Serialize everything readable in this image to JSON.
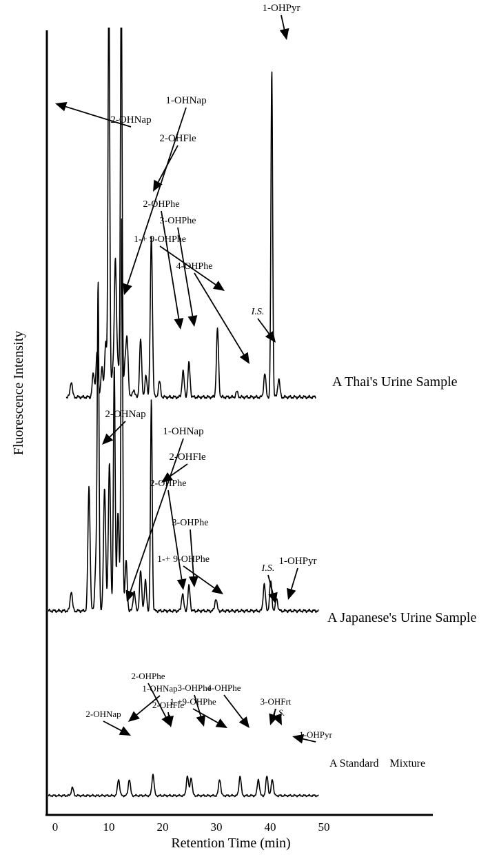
{
  "chart_data": {
    "type": "line",
    "title": "",
    "xlabel": "Retention Time (min)",
    "ylabel": "Fluorescence Intensity",
    "xlim": [
      0,
      50
    ],
    "xticks": [
      "0",
      "10",
      "20",
      "30",
      "40",
      "50"
    ],
    "series": [
      {
        "name": "A Thai's Urine Sample",
        "peaks": [
          {
            "x": 3.0,
            "h": 0.06
          },
          {
            "x": 7.1,
            "h": 0.09
          },
          {
            "x": 7.8,
            "h": 0.17
          },
          {
            "x": 8.7,
            "h": 0.11
          },
          {
            "x": 9.4,
            "h": 0.21
          },
          {
            "x": 10.0,
            "h": 1.6
          },
          {
            "x": 10.7,
            "h": 0.09
          },
          {
            "x": 11.2,
            "h": 0.52
          },
          {
            "x": 11.7,
            "h": 0.12
          },
          {
            "x": 12.3,
            "h": 1.6
          },
          {
            "x": 13.0,
            "h": 0.12
          },
          {
            "x": 13.4,
            "h": 0.21
          },
          {
            "x": 14.6,
            "h": 0.03
          },
          {
            "x": 15.9,
            "h": 0.22
          },
          {
            "x": 16.9,
            "h": 0.08
          },
          {
            "x": 17.9,
            "h": 0.61
          },
          {
            "x": 19.4,
            "h": 0.06
          },
          {
            "x": 23.8,
            "h": 0.1
          },
          {
            "x": 24.9,
            "h": 0.13
          },
          {
            "x": 30.2,
            "h": 0.26
          },
          {
            "x": 33.8,
            "h": 0.02
          },
          {
            "x": 39.0,
            "h": 0.09
          },
          {
            "x": 40.3,
            "h": 1.25
          },
          {
            "x": 41.6,
            "h": 0.07
          }
        ],
        "annotations": [
          {
            "text": "2-OHNap",
            "x": 11.2
          },
          {
            "text": "1-OHNap",
            "x": 13.4
          },
          {
            "text": "2-OHFle",
            "x": 17.9
          },
          {
            "text": "2-OHPhe",
            "x": 23.8
          },
          {
            "text": "3-OHPhe",
            "x": 24.9
          },
          {
            "text": "1-+ 9-OHPhe",
            "x": 30.2
          },
          {
            "text": "4-OHPhe",
            "x": 33.8
          },
          {
            "text": "I.S.",
            "x": 39.0
          },
          {
            "text": "1-OHPyr",
            "x": 40.3
          }
        ]
      },
      {
        "name": "A Japanese's Urine Sample",
        "peaks": [
          {
            "x": 3.0,
            "h": 0.08
          },
          {
            "x": 6.3,
            "h": 0.5
          },
          {
            "x": 7.6,
            "h": 0.2
          },
          {
            "x": 8.0,
            "h": 1.3
          },
          {
            "x": 9.2,
            "h": 0.5
          },
          {
            "x": 10.1,
            "h": 0.6
          },
          {
            "x": 11.0,
            "h": 1.0
          },
          {
            "x": 11.7,
            "h": 0.4
          },
          {
            "x": 12.4,
            "h": 1.6
          },
          {
            "x": 13.2,
            "h": 0.2
          },
          {
            "x": 14.7,
            "h": 0.08
          },
          {
            "x": 15.9,
            "h": 0.16
          },
          {
            "x": 16.8,
            "h": 0.12
          },
          {
            "x": 17.9,
            "h": 0.85
          },
          {
            "x": 23.7,
            "h": 0.07
          },
          {
            "x": 24.9,
            "h": 0.1
          },
          {
            "x": 29.9,
            "h": 0.05
          },
          {
            "x": 38.9,
            "h": 0.11
          },
          {
            "x": 40.1,
            "h": 0.12
          },
          {
            "x": 41.2,
            "h": 0.05
          }
        ],
        "annotations": [
          {
            "text": "2-OHNap",
            "x": 11.0
          },
          {
            "text": "1-OHNap",
            "x": 13.2
          },
          {
            "text": "2-OHFle",
            "x": 17.9
          },
          {
            "text": "2-OHPhe",
            "x": 23.7
          },
          {
            "text": "3-OHPhe",
            "x": 24.9
          },
          {
            "text": "1-+ 9-OHPhe",
            "x": 29.9
          },
          {
            "text": "I.S.",
            "x": 38.9
          },
          {
            "text": "1-OHPyr",
            "x": 40.1
          }
        ]
      },
      {
        "name": "A Standard    Mixture",
        "peaks": [
          {
            "x": 3.2,
            "h": 0.05
          },
          {
            "x": 11.8,
            "h": 0.1
          },
          {
            "x": 13.8,
            "h": 0.1
          },
          {
            "x": 18.2,
            "h": 0.13
          },
          {
            "x": 24.6,
            "h": 0.12
          },
          {
            "x": 25.3,
            "h": 0.11
          },
          {
            "x": 30.6,
            "h": 0.1
          },
          {
            "x": 34.4,
            "h": 0.12
          },
          {
            "x": 37.8,
            "h": 0.1
          },
          {
            "x": 39.4,
            "h": 0.12
          },
          {
            "x": 40.4,
            "h": 0.1
          }
        ],
        "annotations": [
          {
            "text": "2-OHNap",
            "x": 11.8
          },
          {
            "text": "1-OHNap",
            "x": 13.8
          },
          {
            "text": "2-OHFle",
            "x": 18.2
          },
          {
            "text": "2-OHPhe",
            "x": 24.6
          },
          {
            "text": "3-OHPhe",
            "x": 25.3
          },
          {
            "text": "1-+9-OHPhe",
            "x": 30.6
          },
          {
            "text": "4-OHPhe",
            "x": 34.4
          },
          {
            "text": "3-OHFrt",
            "x": 37.8
          },
          {
            "text": "I.S.",
            "x": 39.4
          },
          {
            "text": "1-OHPyr",
            "x": 40.4
          }
        ]
      }
    ]
  }
}
